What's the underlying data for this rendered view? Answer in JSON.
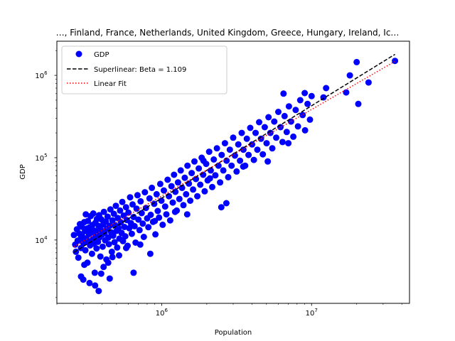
{
  "chart_data": {
    "type": "scatter",
    "title": "…, Finland, France, Netherlands, United Kingdom, Greece, Hungary, Ireland, Ic…",
    "xlabel": "Population",
    "ylabel": "GDP",
    "xscale": "log",
    "yscale": "log",
    "xlim": [
      200000,
      45000000
    ],
    "ylim": [
      1700,
      2600000
    ],
    "x_ticks": [
      {
        "value": 1000000,
        "base": "10",
        "exp": "6"
      },
      {
        "value": 10000000,
        "base": "10",
        "exp": "7"
      }
    ],
    "y_ticks": [
      {
        "value": 10000,
        "base": "10",
        "exp": "4"
      },
      {
        "value": 100000,
        "base": "10",
        "exp": "5"
      },
      {
        "value": 1000000,
        "base": "10",
        "exp": "6"
      }
    ],
    "grid": false,
    "legend_position": "upper-left",
    "colors": {
      "points": "#0000ff",
      "superlinear": "#000000",
      "linear": "#ff0000"
    },
    "series": [
      {
        "name": "GDP",
        "kind": "points",
        "points": [
          [
            260000,
            11500
          ],
          [
            265000,
            8800
          ],
          [
            268000,
            7200
          ],
          [
            272000,
            13500
          ],
          [
            275000,
            9800
          ],
          [
            278000,
            6100
          ],
          [
            282000,
            12000
          ],
          [
            285000,
            15600
          ],
          [
            288000,
            10300
          ],
          [
            290000,
            8000
          ],
          [
            293000,
            14500
          ],
          [
            296000,
            11000
          ],
          [
            300000,
            9200
          ],
          [
            300000,
            3300
          ],
          [
            305000,
            16500
          ],
          [
            308000,
            12800
          ],
          [
            310000,
            7500
          ],
          [
            312000,
            20500
          ],
          [
            315000,
            10500
          ],
          [
            318000,
            13800
          ],
          [
            320000,
            5300
          ],
          [
            322000,
            17000
          ],
          [
            325000,
            9600
          ],
          [
            328000,
            11800
          ],
          [
            330000,
            14200
          ],
          [
            333000,
            8600
          ],
          [
            336000,
            19500
          ],
          [
            340000,
            12300
          ],
          [
            343000,
            6800
          ],
          [
            345000,
            15200
          ],
          [
            348000,
            10200
          ],
          [
            350000,
            21000
          ],
          [
            353000,
            9000
          ],
          [
            356000,
            13000
          ],
          [
            358000,
            4000
          ],
          [
            362000,
            16200
          ],
          [
            365000,
            11200
          ],
          [
            368000,
            7900
          ],
          [
            370000,
            18000
          ],
          [
            373000,
            12600
          ],
          [
            376000,
            9500
          ],
          [
            380000,
            14800
          ],
          [
            383000,
            20000
          ],
          [
            386000,
            10800
          ],
          [
            390000,
            6300
          ],
          [
            393000,
            13300
          ],
          [
            396000,
            17800
          ],
          [
            400000,
            11600
          ],
          [
            404000,
            8300
          ],
          [
            408000,
            15500
          ],
          [
            412000,
            22000
          ],
          [
            416000,
            12100
          ],
          [
            420000,
            9900
          ],
          [
            424000,
            16800
          ],
          [
            428000,
            5800
          ],
          [
            432000,
            13700
          ],
          [
            436000,
            19200
          ],
          [
            440000,
            10700
          ],
          [
            445000,
            8900
          ],
          [
            450000,
            14900
          ],
          [
            455000,
            23500
          ],
          [
            460000,
            12400
          ],
          [
            465000,
            7200
          ],
          [
            470000,
            17300
          ],
          [
            475000,
            11300
          ],
          [
            480000,
            20800
          ],
          [
            485000,
            9400
          ],
          [
            490000,
            15000
          ],
          [
            495000,
            26000
          ],
          [
            500000,
            12900
          ],
          [
            505000,
            8100
          ],
          [
            510000,
            18500
          ],
          [
            516000,
            14000
          ],
          [
            522000,
            10400
          ],
          [
            528000,
            22800
          ],
          [
            534000,
            16400
          ],
          [
            540000,
            12200
          ],
          [
            546000,
            29000
          ],
          [
            552000,
            9700
          ],
          [
            558000,
            19800
          ],
          [
            565000,
            14400
          ],
          [
            572000,
            11100
          ],
          [
            579000,
            25000
          ],
          [
            586000,
            17500
          ],
          [
            593000,
            8500
          ],
          [
            600000,
            21500
          ],
          [
            608000,
            13900
          ],
          [
            616000,
            33000
          ],
          [
            624000,
            16000
          ],
          [
            632000,
            11900
          ],
          [
            640000,
            27000
          ],
          [
            650000,
            19000
          ],
          [
            660000,
            14700
          ],
          [
            670000,
            9300
          ],
          [
            680000,
            24000
          ],
          [
            690000,
            35000
          ],
          [
            700000,
            17700
          ],
          [
            712000,
            13200
          ],
          [
            724000,
            29500
          ],
          [
            736000,
            21200
          ],
          [
            748000,
            15800
          ],
          [
            760000,
            10900
          ],
          [
            773000,
            38000
          ],
          [
            786000,
            24500
          ],
          [
            800000,
            18300
          ],
          [
            815000,
            14300
          ],
          [
            830000,
            32000
          ],
          [
            845000,
            20200
          ],
          [
            860000,
            43000
          ],
          [
            876000,
            16600
          ],
          [
            892000,
            27500
          ],
          [
            908000,
            11700
          ],
          [
            925000,
            36000
          ],
          [
            942000,
            22500
          ],
          [
            960000,
            18700
          ],
          [
            978000,
            48000
          ],
          [
            996000,
            30000
          ],
          [
            1015000,
            15300
          ],
          [
            1035000,
            40000
          ],
          [
            1055000,
            25500
          ],
          [
            1075000,
            20500
          ],
          [
            1096000,
            54000
          ],
          [
            1118000,
            34000
          ],
          [
            1140000,
            17300
          ],
          [
            1163000,
            45000
          ],
          [
            1186000,
            28500
          ],
          [
            1210000,
            62000
          ],
          [
            1235000,
            38500
          ],
          [
            1260000,
            22800
          ],
          [
            1286000,
            50000
          ],
          [
            1312000,
            31500
          ],
          [
            1340000,
            70000
          ],
          [
            1368000,
            43000
          ],
          [
            1397000,
            26500
          ],
          [
            1426000,
            57000
          ],
          [
            1456000,
            36000
          ],
          [
            1487000,
            80000
          ],
          [
            1519000,
            48500
          ],
          [
            1552000,
            30000
          ],
          [
            1586000,
            65000
          ],
          [
            1620000,
            41000
          ],
          [
            1655000,
            90000
          ],
          [
            1692000,
            55000
          ],
          [
            1730000,
            34000
          ],
          [
            1769000,
            74000
          ],
          [
            1809000,
            47000
          ],
          [
            1850000,
            100000
          ],
          [
            1893000,
            62000
          ],
          [
            1937000,
            39000
          ],
          [
            1982000,
            84000
          ],
          [
            2028000,
            53000
          ],
          [
            2075000,
            118000
          ],
          [
            2124000,
            70000
          ],
          [
            2175000,
            44000
          ],
          [
            2227000,
            95000
          ],
          [
            2281000,
            61000
          ],
          [
            2337000,
            130000
          ],
          [
            2394000,
            80000
          ],
          [
            2453000,
            50000
          ],
          [
            2514000,
            108000
          ],
          [
            2577000,
            70000
          ],
          [
            2642000,
            150000
          ],
          [
            2709000,
            92000
          ],
          [
            2778000,
            58000
          ],
          [
            2850000,
            125000
          ],
          [
            2924000,
            80000
          ],
          [
            3000000,
            175000
          ],
          [
            3080000,
            106000
          ],
          [
            3160000,
            68000
          ],
          [
            3245000,
            145000
          ],
          [
            3330000,
            92000
          ],
          [
            3420000,
            200000
          ],
          [
            3510000,
            125000
          ],
          [
            3605000,
            80000
          ],
          [
            3700000,
            170000
          ],
          [
            3800000,
            108000
          ],
          [
            3900000,
            230000
          ],
          [
            4010000,
            145000
          ],
          [
            4120000,
            94000
          ],
          [
            4230000,
            200000
          ],
          [
            4350000,
            125000
          ],
          [
            4470000,
            270000
          ],
          [
            4600000,
            170000
          ],
          [
            4730000,
            110000
          ],
          [
            4870000,
            235000
          ],
          [
            5010000,
            150000
          ],
          [
            5160000,
            310000
          ],
          [
            5310000,
            200000
          ],
          [
            5470000,
            130000
          ],
          [
            5640000,
            275000
          ],
          [
            5810000,
            175000
          ],
          [
            6000000,
            360000
          ],
          [
            6200000,
            235000
          ],
          [
            6400000,
            155000
          ],
          [
            6610000,
            320000
          ],
          [
            6830000,
            205000
          ],
          [
            7060000,
            420000
          ],
          [
            7300000,
            275000
          ],
          [
            7560000,
            180000
          ],
          [
            7830000,
            380000
          ],
          [
            8110000,
            240000
          ],
          [
            8400000,
            500000
          ],
          [
            8720000,
            330000
          ],
          [
            9050000,
            215000
          ],
          [
            9400000,
            450000
          ],
          [
            9760000,
            290000
          ],
          [
            6500000,
            600000
          ],
          [
            2500000,
            25000
          ],
          [
            2700000,
            28000
          ],
          [
            1230000,
            22000
          ],
          [
            1480000,
            20500
          ],
          [
            650000,
            4000
          ],
          [
            380000,
            2400
          ],
          [
            9000000,
            610000
          ],
          [
            10000000,
            560000
          ],
          [
            12000000,
            540000
          ],
          [
            12500000,
            700000
          ],
          [
            17000000,
            620000
          ],
          [
            20000000,
            1450000
          ],
          [
            18000000,
            1000000
          ],
          [
            20500000,
            450000
          ],
          [
            24000000,
            820000
          ],
          [
            36000000,
            1500000
          ],
          [
            7000000,
            150000
          ],
          [
            5100000,
            90000
          ],
          [
            3500000,
            78000
          ],
          [
            1900000,
            92000
          ],
          [
            2100000,
            56000
          ],
          [
            900000,
            17000
          ],
          [
            840000,
            6800
          ],
          [
            720000,
            8800
          ],
          [
            580000,
            8000
          ],
          [
            520000,
            6500
          ],
          [
            470000,
            6200
          ],
          [
            440000,
            5300
          ],
          [
            410000,
            4700
          ],
          [
            360000,
            2800
          ],
          [
            330000,
            3000
          ],
          [
            290000,
            3600
          ],
          [
            305000,
            5000
          ],
          [
            450000,
            3400
          ],
          [
            395000,
            3900
          ]
        ]
      },
      {
        "name": "Superlinear: Beta = 1.109",
        "kind": "line",
        "style": "dashed",
        "points": [
          [
            260000,
            7100
          ],
          [
            36000000,
            1800000
          ]
        ]
      },
      {
        "name": "Linear Fit",
        "kind": "line",
        "style": "dotted",
        "points": [
          [
            260000,
            8300
          ],
          [
            36000000,
            1480000
          ]
        ]
      }
    ]
  }
}
